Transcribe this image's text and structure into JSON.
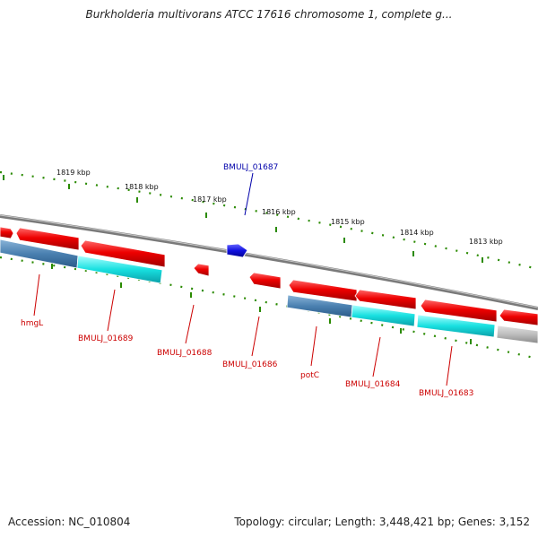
{
  "title": "Burkholderia multivorans ATCC 17616 chromosome 1, complete g...",
  "footer": {
    "accession": "Accession: NC_010804",
    "summary": "Topology: circular; Length: 3,448,421 bp; Genes: 3,152"
  },
  "scale": {
    "ticks": [
      "1819 kbp",
      "1818 kbp",
      "1817 kbp",
      "1816 kbp",
      "1815 kbp",
      "1814 kbp",
      "1813 kbp"
    ]
  },
  "genes": {
    "hmgL": "hmgL",
    "bmulj_01689": "BMULJ_01689",
    "bmulj_01688": "BMULJ_01688",
    "bmulj_01687": "BMULJ_01687",
    "bmulj_01686": "BMULJ_01686",
    "potC": "potC",
    "bmulj_01684": "BMULJ_01684",
    "bmulj_01683": "BMULJ_01683"
  },
  "colors": {
    "gene_red": "#e8001c",
    "gene_blue": "#1515e0",
    "feature_cyan": "#19e0e0",
    "feature_steel": "#4a80b0",
    "tick_green": "#2a8a00",
    "label_red": "#cc0000",
    "label_blue": "#0000aa",
    "backbone": "#8a8a8a"
  }
}
